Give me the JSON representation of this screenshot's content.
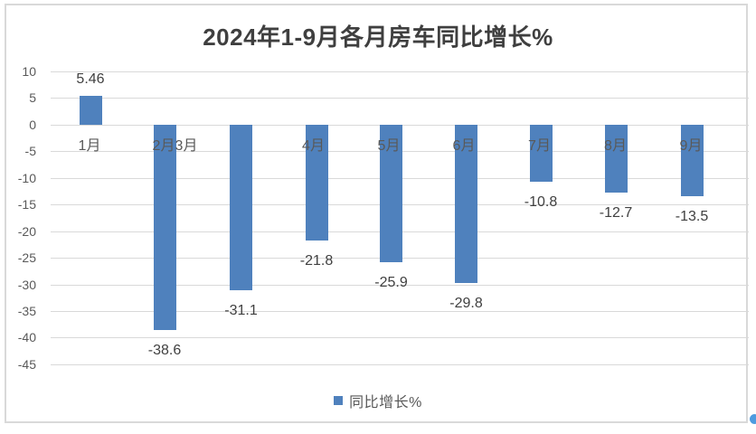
{
  "title": "2024年1-9月各月房车同比增长%",
  "legend": {
    "label": "同比增长%"
  },
  "colors": {
    "bar": "#4f81bd",
    "gridline": "#d9d9d9",
    "frame_border": "#d9d9d9",
    "title_text": "#3f3f3f",
    "data_label_text": "#404040",
    "axis_text": "#595959",
    "edge_dot": "#4e9bdf"
  },
  "chart_data": {
    "type": "bar",
    "title": "2024年1-9月各月房车同比增长%",
    "categories": [
      "1月",
      "2月",
      "3月",
      "4月",
      "5月",
      "6月",
      "7月",
      "8月",
      "9月"
    ],
    "series": [
      {
        "name": "同比增长%",
        "values": [
          5.46,
          -38.6,
          -31.1,
          -21.8,
          -25.9,
          -29.8,
          -10.8,
          -12.7,
          -13.5
        ],
        "data_labels": [
          "5.46",
          "-38.6",
          "-31.1",
          "-21.8",
          "-25.9",
          "-29.8",
          "-10.8",
          "-12.7",
          "-13.5"
        ]
      }
    ],
    "xlabel": "",
    "ylabel": "",
    "ylim": [
      -45,
      10
    ],
    "yticks": [
      10,
      5,
      0,
      -5,
      -10,
      -15,
      -20,
      -25,
      -30,
      -35,
      -40,
      -45
    ],
    "grid": true,
    "legend_entries": [
      "同比增长%"
    ],
    "legend_position": "bottom"
  }
}
